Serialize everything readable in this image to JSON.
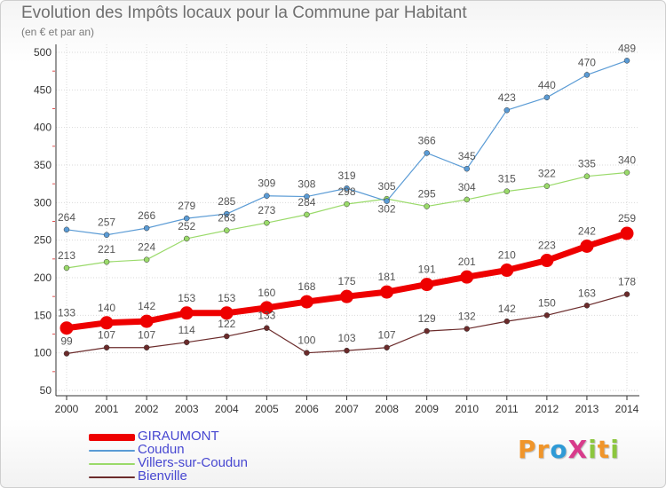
{
  "title": "Evolution des Impôts locaux pour la Commune par Habitant",
  "subtitle": "(en € et par an)",
  "logo": {
    "text": "ProXiti",
    "letters": [
      "P",
      "r",
      "o",
      "X",
      "i",
      "t",
      "i"
    ],
    "colors": [
      "#f0952a",
      "#f0952a",
      "#2f9ad6",
      "#d83b8b",
      "#8cc63e",
      "#f0952a",
      "#8cc63e"
    ]
  },
  "chart_data": {
    "type": "line",
    "title": "Evolution des Impôts locaux pour la Commune par Habitant",
    "ylabel": "(en € et par an)",
    "ylim": [
      50,
      500
    ],
    "yticks": [
      50,
      100,
      150,
      200,
      250,
      300,
      350,
      400,
      450,
      500
    ],
    "x": [
      "2000",
      "2001",
      "2002",
      "2003",
      "2004",
      "2005",
      "2006",
      "2007",
      "2008",
      "2009",
      "2010",
      "2011",
      "2012",
      "2013",
      "2014"
    ],
    "grid": true,
    "series": [
      {
        "name": "GIRAUMONT",
        "color": "#ee0000",
        "values": [
          133,
          140,
          142,
          153,
          153,
          160,
          168,
          175,
          181,
          191,
          201,
          210,
          223,
          242,
          259
        ]
      },
      {
        "name": "Coudun",
        "color": "#5a9bd5",
        "values": [
          264,
          257,
          266,
          279,
          285,
          309,
          308,
          319,
          302,
          366,
          345,
          423,
          440,
          470,
          489
        ]
      },
      {
        "name": "Villers-sur-Coudun",
        "color": "#9ada6a",
        "values": [
          213,
          221,
          224,
          252,
          263,
          273,
          284,
          298,
          305,
          295,
          304,
          315,
          322,
          335,
          340
        ]
      },
      {
        "name": "Bienville",
        "color": "#6b2b2b",
        "values": [
          99,
          107,
          107,
          114,
          122,
          133,
          100,
          103,
          107,
          129,
          132,
          142,
          150,
          163,
          178
        ]
      }
    ]
  }
}
